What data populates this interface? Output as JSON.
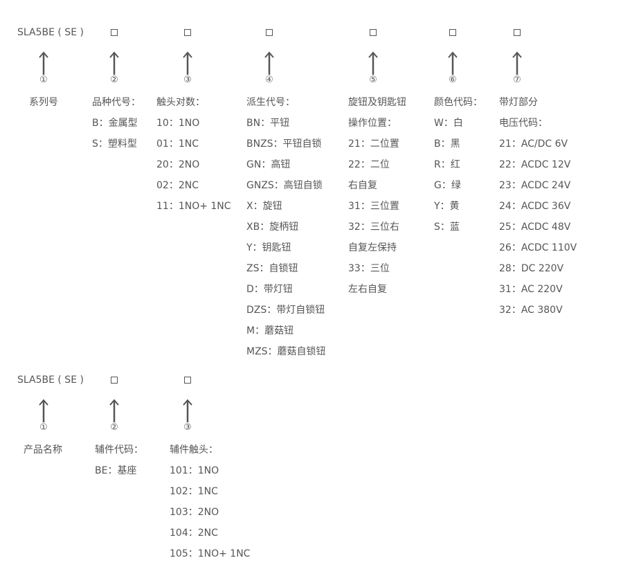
{
  "colors": {
    "text": "#555555",
    "arrow": "#555555"
  },
  "blocks": [
    {
      "header": "SLA5BE ( SE )",
      "columns": [
        {
          "number": "①",
          "lines": [
            "系列号"
          ]
        },
        {
          "number": "②",
          "lines": [
            "品种代号：",
            "B：金属型",
            "S：塑料型"
          ]
        },
        {
          "number": "③",
          "lines": [
            "触头对数：",
            "10：1NO",
            "01：1NC",
            "20：2NO",
            "02：2NC",
            "11：1NO+ 1NC"
          ]
        },
        {
          "number": "④",
          "lines": [
            "派生代号：",
            "BN：平钮",
            "BNZS：平钮自锁",
            "GN：高钮",
            "GNZS：高钮自锁",
            "X：旋钮",
            "XB：旋柄钮",
            "Y：钥匙钮",
            "ZS：自锁钮",
            "D：带灯钮",
            "DZS：带灯自锁钮",
            "M：蘑菇钮",
            "MZS：蘑菇自锁钮"
          ]
        },
        {
          "number": "⑤",
          "lines": [
            "旋钮及钥匙钮",
            "操作位置：",
            "21：二位置",
            "22：二位",
            "右自复",
            "31：三位置",
            "32：三位右",
            "自复左保持",
            "33：三位",
            "左右自复"
          ]
        },
        {
          "number": "⑥",
          "lines": [
            "颜色代码：",
            "W：白",
            "B：黑",
            "R：红",
            "G：绿",
            "Y：黄",
            "S：蓝"
          ]
        },
        {
          "number": "⑦",
          "lines": [
            "带灯部分",
            "电压代码：",
            "21：AC/DC 6V",
            "22：ACDC 12V",
            "23：ACDC 24V",
            "24：ACDC 36V",
            "25：ACDC 48V",
            "26：ACDC 110V",
            "28：DC 220V",
            "31：AC 220V",
            "32：AC 380V"
          ]
        }
      ]
    },
    {
      "header": "SLA5BE ( SE )",
      "columns": [
        {
          "number": "①",
          "lines": [
            "产品名称"
          ]
        },
        {
          "number": "②",
          "lines": [
            "辅件代码：",
            "BE：基座"
          ]
        },
        {
          "number": "③",
          "lines": [
            "辅件触头：",
            "101：1NO",
            "102：1NC",
            "103：2NO",
            "104：2NC",
            "105：1NO+ 1NC"
          ]
        }
      ]
    }
  ]
}
